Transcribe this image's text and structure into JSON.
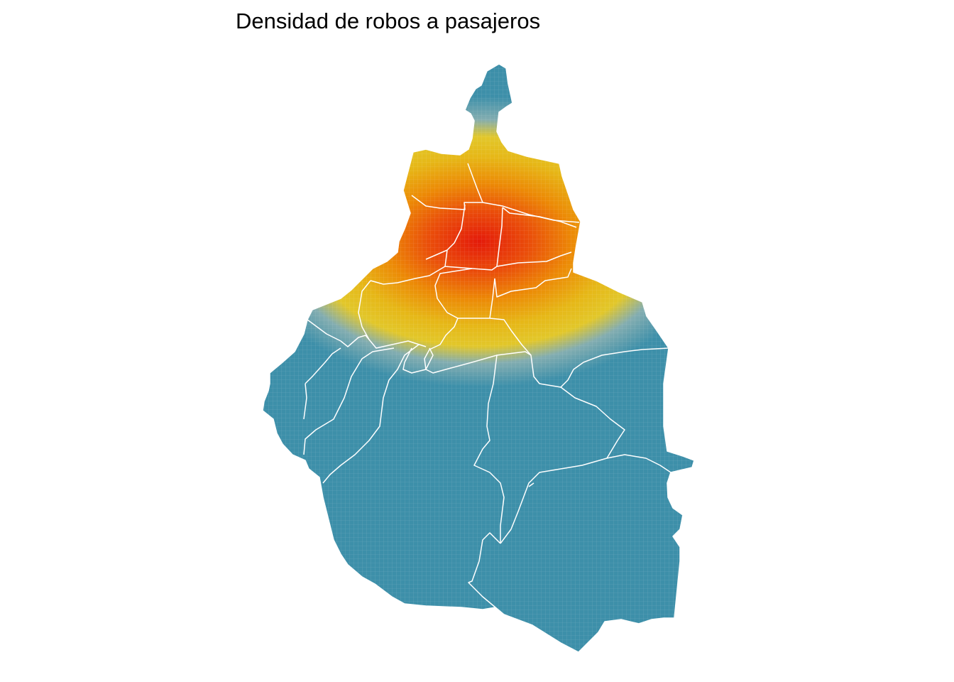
{
  "title": "Densidad de robos a pasajeros",
  "map": {
    "subject": "Ciudad de México, alcaldías",
    "layer": "kernel density heatmap",
    "colors": {
      "high": "#e41a0a",
      "mid_high": "#ec6a08",
      "mid": "#e5ba1c",
      "mid_low": "#67a5b6",
      "low": "#3d8fa9",
      "boundary": "#ffffff",
      "background": "#ffffff"
    },
    "grid": true
  }
}
